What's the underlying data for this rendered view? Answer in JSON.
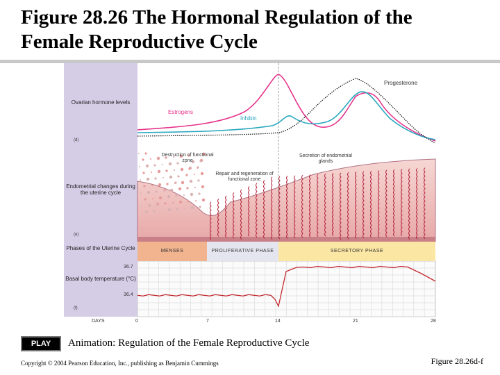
{
  "slide": {
    "title_line1": "Figure 28.26  The Hormonal Regulation of the",
    "title_line2": "Female Reproductive Cycle"
  },
  "figure": {
    "ovarian": {
      "row_label": "Ovarian hormone levels",
      "panel_tag": "(d)",
      "curves": [
        {
          "name": "Estrogens",
          "color": "#e6348c"
        },
        {
          "name": "Inhibin",
          "color": "#2aa7c0"
        },
        {
          "name": "Progesterone",
          "color": "#111111"
        }
      ]
    },
    "endometrial": {
      "row_label": "Endometrial changes during the uterine cycle",
      "panel_tag": "(e)",
      "annotation_destruction": "Destruction of functional zone",
      "annotation_repair": "Repair and regeneration of functional zone",
      "annotation_secretion": "Secretion of endometrial glands"
    },
    "phases": {
      "row_label": "Phases of the Uterine Cycle",
      "items": [
        {
          "label": "MENSES",
          "color": "#f1b48f"
        },
        {
          "label": "PROLIFERATIVE PHASE",
          "color": "#e5e5ef"
        },
        {
          "label": "SECRETORY PHASE",
          "color": "#fbe6a4"
        }
      ]
    },
    "temperature": {
      "row_label": "Basal body temperature (°C)",
      "panel_tag": "(f)",
      "tick_high": "36.7",
      "tick_low": "36.4"
    },
    "days": {
      "label": "DAYS",
      "ticks": [
        "0",
        "7",
        "14",
        "21",
        "28"
      ]
    }
  },
  "play_button": "PLAY",
  "animation_caption": "Animation: Regulation of the Female Reproductive Cycle",
  "copyright": "Copyright © 2004 Pearson Education, Inc., publishing as Benjamin Cummings",
  "figure_ref": "Figure 28.26d-f"
}
